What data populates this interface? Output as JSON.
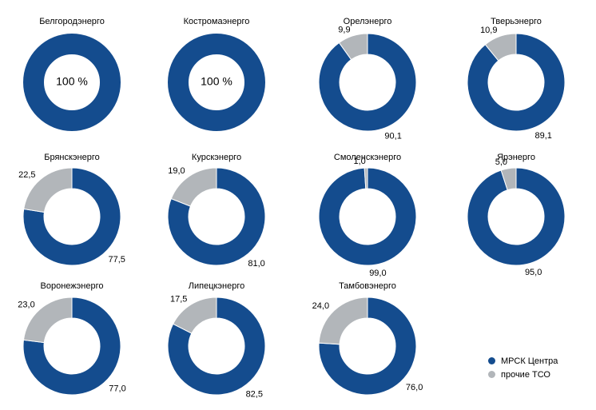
{
  "chart_data": {
    "type": "pie",
    "donut": true,
    "colors": {
      "primary": "#144C8E",
      "secondary": "#B2B6BA"
    },
    "legend": {
      "position": "bottom-right",
      "entries": [
        "МРСК Центра",
        "прочие ТСО"
      ]
    },
    "charts": [
      {
        "title": "Белгородэнерго",
        "values": [
          100,
          0
        ],
        "labels": [
          "",
          ""
        ],
        "center_label": "100 %"
      },
      {
        "title": "Костромаэнерго",
        "values": [
          100,
          0
        ],
        "labels": [
          "",
          ""
        ],
        "center_label": "100 %"
      },
      {
        "title": "Орелэнерго",
        "values": [
          90.1,
          9.9
        ],
        "labels": [
          "90,1",
          "9,9"
        ],
        "center_label": ""
      },
      {
        "title": "Тверьэнерго",
        "values": [
          89.1,
          10.9
        ],
        "labels": [
          "89,1",
          "10,9"
        ],
        "center_label": ""
      },
      {
        "title": "Брянскэнерго",
        "values": [
          77.5,
          22.5
        ],
        "labels": [
          "77,5",
          "22,5"
        ],
        "center_label": ""
      },
      {
        "title": "Курскэнерго",
        "values": [
          81.0,
          19.0
        ],
        "labels": [
          "81,0",
          "19,0"
        ],
        "center_label": ""
      },
      {
        "title": "Смоленскэнерго",
        "values": [
          99.0,
          1.0
        ],
        "labels": [
          "99,0",
          "1,0"
        ],
        "center_label": ""
      },
      {
        "title": "Ярэнерго",
        "values": [
          95.0,
          5.0
        ],
        "labels": [
          "95,0",
          "5,0"
        ],
        "center_label": ""
      },
      {
        "title": "Воронежэнерго",
        "values": [
          77.0,
          23.0
        ],
        "labels": [
          "77,0",
          "23,0"
        ],
        "center_label": ""
      },
      {
        "title": "Липецкэнерго",
        "values": [
          82.5,
          17.5
        ],
        "labels": [
          "82,5",
          "17,5"
        ],
        "center_label": ""
      },
      {
        "title": "Тамбовэнерго",
        "values": [
          76.0,
          24.0
        ],
        "labels": [
          "76,0",
          "24,0"
        ],
        "center_label": ""
      }
    ]
  }
}
